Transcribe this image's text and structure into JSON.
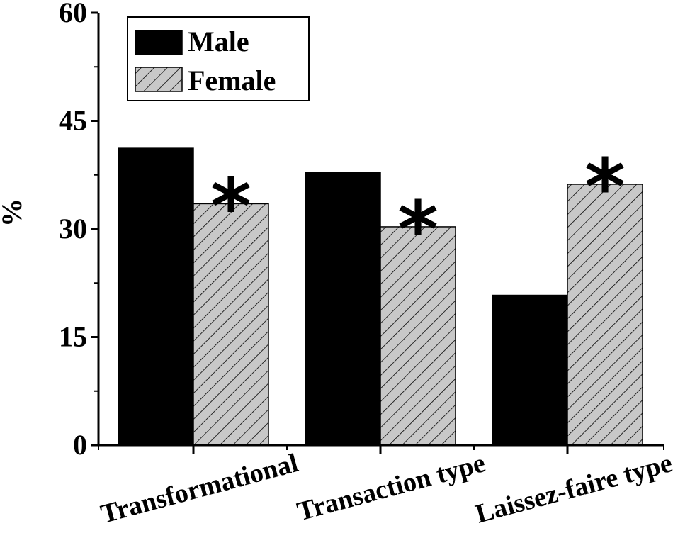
{
  "chart_data": {
    "type": "bar",
    "title": "",
    "xlabel": "",
    "ylabel": "%",
    "ylim": [
      0,
      60
    ],
    "yticks": [
      "0",
      "15",
      "30",
      "45",
      "60"
    ],
    "categories": [
      "Transformational",
      "Transaction type",
      "Laissez-faire type"
    ],
    "series": [
      {
        "name": "Male",
        "values": [
          41.2,
          37.8,
          20.8
        ],
        "color": "#000000",
        "pattern": "solid"
      },
      {
        "name": "Female",
        "values": [
          33.5,
          30.3,
          36.2
        ],
        "color": "#c8c8c8",
        "pattern": "hatched"
      }
    ],
    "annotations": [
      "*",
      "*",
      "*"
    ],
    "legend": "top-left",
    "grid": false
  }
}
